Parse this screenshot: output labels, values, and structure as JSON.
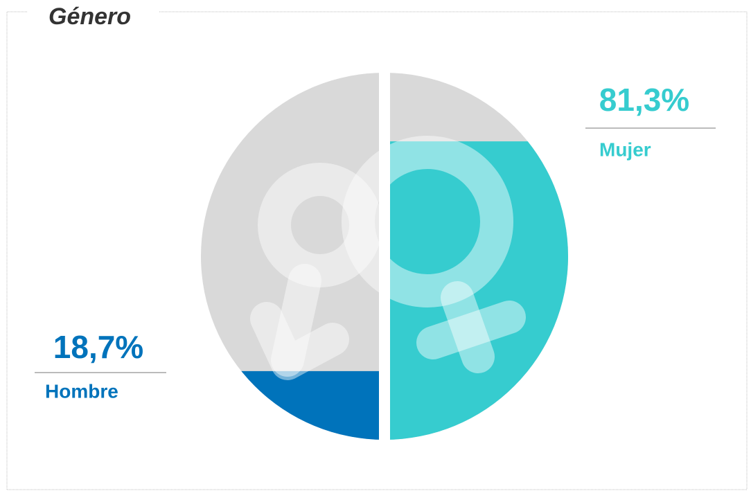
{
  "chart_data": {
    "type": "half-circle-fill",
    "title": "Género",
    "categories": [
      "Hombre",
      "Mujer"
    ],
    "values": [
      18.7,
      81.3
    ],
    "value_labels": [
      "18,7%",
      "81,3%"
    ],
    "colors": [
      "#0073bb",
      "#36cccf"
    ],
    "background_color": "#d9d9d9"
  }
}
